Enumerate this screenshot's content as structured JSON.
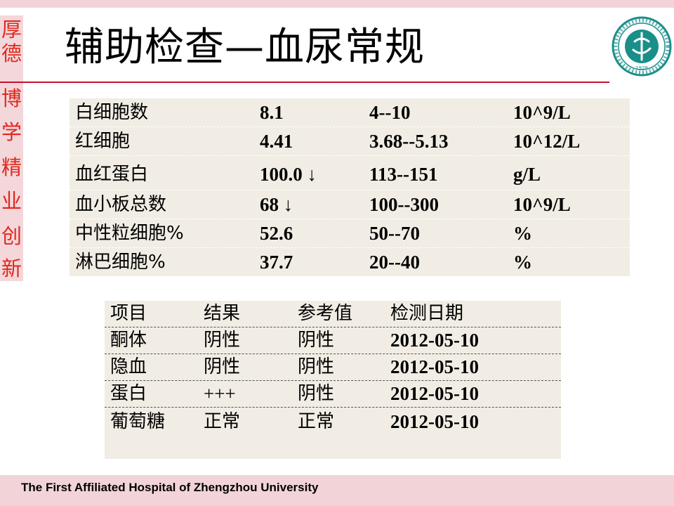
{
  "title": "辅助检查—血尿常规",
  "side_motto": [
    "厚",
    "德",
    "博",
    "学",
    "精",
    "业",
    "创",
    "新"
  ],
  "footer": "The First Affiliated Hospital of Zhengzhou University",
  "blood_routine": {
    "rows": [
      [
        "白细胞数",
        "8.1",
        "4--10",
        "10^9/L"
      ],
      [
        "红细胞",
        "4.41",
        "3.68--5.13",
        "10^12/L"
      ],
      [
        "血红蛋白",
        "100.0 ↓",
        "113--151",
        "g/L"
      ],
      [
        "血小板总数",
        "68 ↓",
        "100--300",
        "10^9/L"
      ],
      [
        "中性粒细胞%",
        "52.6",
        "50--70",
        "%"
      ],
      [
        "淋巴细胞%",
        "37.7",
        "20--40",
        "%"
      ]
    ]
  },
  "urine_routine": {
    "headers": [
      "项目",
      "结果",
      "参考值",
      "检测日期"
    ],
    "rows": [
      [
        "酮体",
        "阴性",
        "阴性",
        "2012-05-10"
      ],
      [
        "隐血",
        "阴性",
        "阴性",
        "2012-05-10"
      ],
      [
        "蛋白",
        "+++",
        "阴性",
        "2012-05-10"
      ],
      [
        "葡萄糖",
        "正常",
        "正常",
        "2012-05-10"
      ]
    ]
  },
  "colors": {
    "accent_red": "#c8102e",
    "motto_red": "#e0281e",
    "band_pink": "#f2d4d8",
    "table_bg": "#f1ede4",
    "logo_teal": "#1a8f8a"
  },
  "logo": {
    "seal_year": "1928"
  }
}
